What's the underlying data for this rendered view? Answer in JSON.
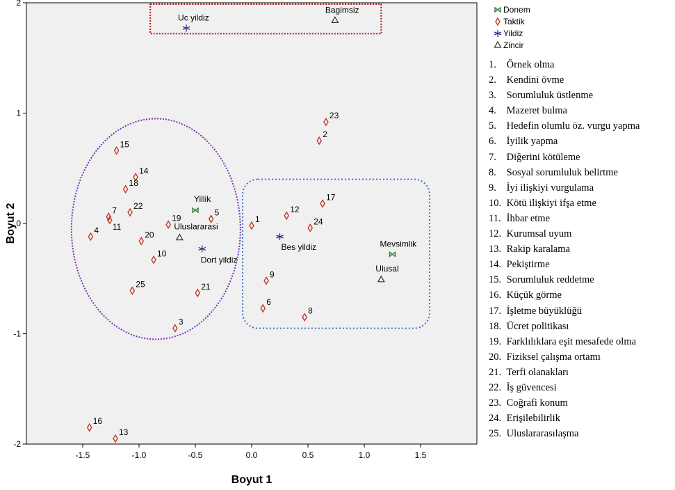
{
  "chart_data": {
    "type": "scatter",
    "xlabel": "Boyut 1",
    "ylabel": "Boyut 2",
    "xlim": [
      -2.0,
      2.0
    ],
    "ylim": [
      -2.0,
      2.0
    ],
    "xticks": [
      "-1.5",
      "-1.0",
      "-0.5",
      "0.0",
      "0.5",
      "1.0",
      "1.5"
    ],
    "xtick_values": [
      -1.5,
      -1.0,
      -0.5,
      0.0,
      0.5,
      1.0,
      1.5
    ],
    "yticks": [
      "2",
      "1",
      "0",
      "-1",
      "-2"
    ],
    "ytick_values": [
      2,
      1,
      0,
      -1,
      -2
    ],
    "grid": false,
    "legend_position": "right",
    "legend": [
      {
        "name": "Donem",
        "marker": "bowtie",
        "color": "#2e7d32"
      },
      {
        "name": "Taktik",
        "marker": "diamond",
        "color": "#c0392b"
      },
      {
        "name": "Yildiz",
        "marker": "star",
        "color": "#2c2c8c"
      },
      {
        "name": "Zincir",
        "marker": "triangle",
        "color": "#333333"
      }
    ],
    "series": [
      {
        "name": "Taktik",
        "points": [
          {
            "label": "1",
            "x": 0.0,
            "y": -0.02
          },
          {
            "label": "2",
            "x": 0.6,
            "y": 0.75
          },
          {
            "label": "3",
            "x": -0.68,
            "y": -0.95
          },
          {
            "label": "4",
            "x": -1.43,
            "y": -0.12
          },
          {
            "label": "5",
            "x": -0.36,
            "y": 0.04
          },
          {
            "label": "6",
            "x": 0.1,
            "y": -0.77
          },
          {
            "label": "7",
            "x": -1.27,
            "y": 0.06
          },
          {
            "label": "8",
            "x": 0.47,
            "y": -0.85
          },
          {
            "label": "9",
            "x": 0.13,
            "y": -0.52
          },
          {
            "label": "10",
            "x": -0.87,
            "y": -0.33
          },
          {
            "label": "11",
            "x": -1.26,
            "y": 0.03
          },
          {
            "label": "12",
            "x": 0.31,
            "y": 0.07
          },
          {
            "label": "13",
            "x": -1.21,
            "y": -1.95
          },
          {
            "label": "14",
            "x": -1.03,
            "y": 0.42
          },
          {
            "label": "15",
            "x": -1.2,
            "y": 0.66
          },
          {
            "label": "16",
            "x": -1.44,
            "y": -1.85
          },
          {
            "label": "17",
            "x": 0.63,
            "y": 0.18
          },
          {
            "label": "18",
            "x": -1.12,
            "y": 0.31
          },
          {
            "label": "19",
            "x": -0.74,
            "y": -0.01
          },
          {
            "label": "20",
            "x": -0.98,
            "y": -0.16
          },
          {
            "label": "21",
            "x": -0.48,
            "y": -0.63
          },
          {
            "label": "22",
            "x": -1.08,
            "y": 0.1
          },
          {
            "label": "23",
            "x": 0.66,
            "y": 0.92
          },
          {
            "label": "24",
            "x": 0.52,
            "y": -0.04
          },
          {
            "label": "25",
            "x": -1.06,
            "y": -0.61
          }
        ]
      },
      {
        "name": "Donem",
        "points": [
          {
            "label": "Yillik",
            "x": -0.5,
            "y": 0.12
          },
          {
            "label": "Mevsimlik",
            "x": 1.25,
            "y": -0.28
          }
        ]
      },
      {
        "name": "Yildiz",
        "points": [
          {
            "label": "Uc yildiz",
            "x": -0.58,
            "y": 1.77
          },
          {
            "label": "Dort yildiz",
            "x": -0.44,
            "y": -0.23
          },
          {
            "label": "Bes yildiz",
            "x": 0.25,
            "y": -0.12
          }
        ]
      },
      {
        "name": "Zincir",
        "points": [
          {
            "label": "Bagimsiz",
            "x": 0.74,
            "y": 1.84
          },
          {
            "label": "Uluslararasi",
            "x": -0.64,
            "y": -0.13
          },
          {
            "label": "Ulusal",
            "x": 1.15,
            "y": -0.51
          }
        ]
      }
    ],
    "items": [
      {
        "num": "1.",
        "text": "Örnek olma"
      },
      {
        "num": "2.",
        "text": "Kendini övme"
      },
      {
        "num": "3.",
        "text": "Sorumluluk üstlenme"
      },
      {
        "num": "4.",
        "text": "Mazeret bulma"
      },
      {
        "num": "5.",
        "text": "Hedefin olumlu öz. vurgu yapma"
      },
      {
        "num": "6.",
        "text": "İyilik yapma"
      },
      {
        "num": "7.",
        "text": "Diğerini kötüleme"
      },
      {
        "num": "8.",
        "text": "Sosyal sorumluluk belirtme"
      },
      {
        "num": "9.",
        "text": "İyi ilişkiyi vurgulama"
      },
      {
        "num": "10.",
        "text": "Kötü ilişkiyi ifşa etme"
      },
      {
        "num": "11.",
        "text": "İhbar etme"
      },
      {
        "num": "12.",
        "text": "Kurumsal uyum"
      },
      {
        "num": "13.",
        "text": "Rakip karalama"
      },
      {
        "num": "14.",
        "text": "Pekiştirme"
      },
      {
        "num": "15.",
        "text": "Sorumluluk reddetme"
      },
      {
        "num": "16.",
        "text": "Küçük görme"
      },
      {
        "num": "17.",
        "text": "İşletme büyüklüğü"
      },
      {
        "num": "18.",
        "text": "Ücret politikası"
      },
      {
        "num": "19.",
        "text": "Farklılıklara eşit mesafede olma"
      },
      {
        "num": "20.",
        "text": "Fiziksel çalışma ortamı"
      },
      {
        "num": "21.",
        "text": "Terfi olanakları"
      },
      {
        "num": "22.",
        "text": "İş güvencesi"
      },
      {
        "num": "23.",
        "text": "Coğrafi konum"
      },
      {
        "num": "24.",
        "text": "Erişilebilirlik"
      },
      {
        "num": "25.",
        "text": "Uluslararasılaşma"
      }
    ],
    "colors": {
      "plot_background": "#f0f0f0",
      "taktik": "#c0392b",
      "donem": "#2e7d32",
      "yildiz": "#2c2c8c",
      "zincir": "#333333",
      "cluster_left": "#7b2fbf",
      "cluster_right": "#3a6fd8",
      "cluster_top": "#b01818"
    }
  }
}
